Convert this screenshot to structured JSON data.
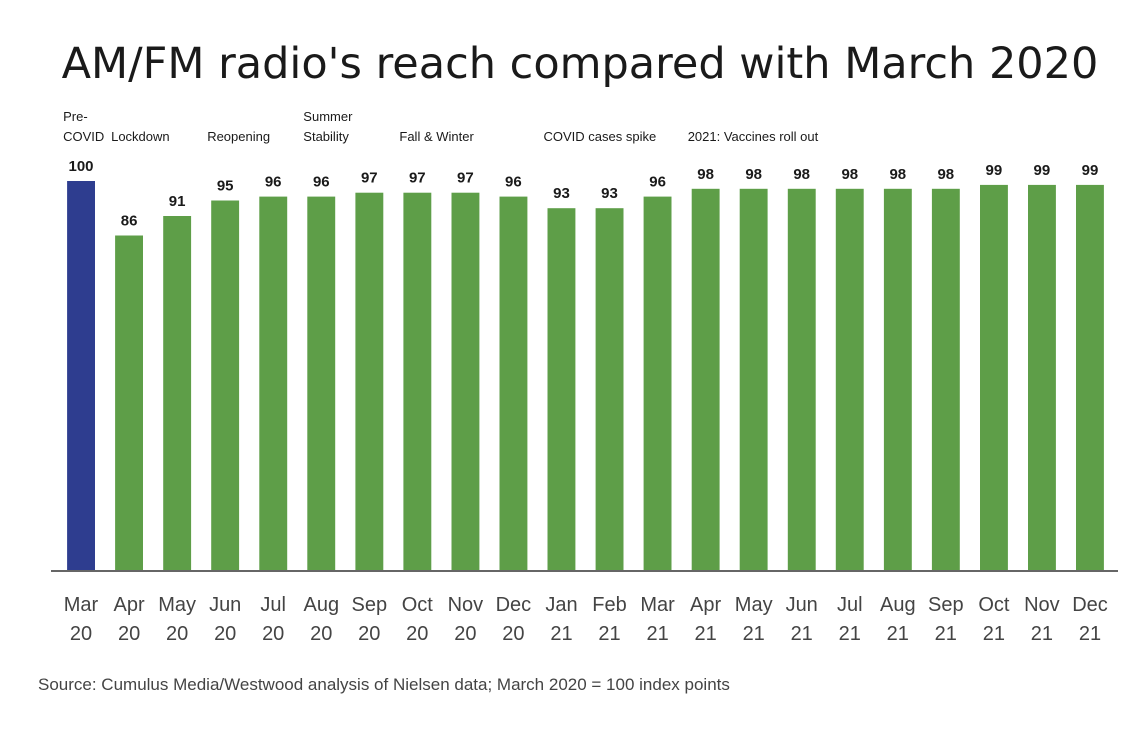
{
  "chart_data": {
    "type": "bar",
    "title": "AM/FM radio's reach compared with March 2020",
    "categories": [
      [
        "Mar",
        "20"
      ],
      [
        "Apr",
        "20"
      ],
      [
        "May",
        "20"
      ],
      [
        "Jun",
        "20"
      ],
      [
        "Jul",
        "20"
      ],
      [
        "Aug",
        "20"
      ],
      [
        "Sep",
        "20"
      ],
      [
        "Oct",
        "20"
      ],
      [
        "Nov",
        "20"
      ],
      [
        "Dec",
        "20"
      ],
      [
        "Jan",
        "21"
      ],
      [
        "Feb",
        "21"
      ],
      [
        "Mar",
        "21"
      ],
      [
        "Apr",
        "21"
      ],
      [
        "May",
        "21"
      ],
      [
        "Jun",
        "21"
      ],
      [
        "Jul",
        "21"
      ],
      [
        "Aug",
        "21"
      ],
      [
        "Sep",
        "21"
      ],
      [
        "Oct",
        "21"
      ],
      [
        "Nov",
        "21"
      ],
      [
        "Dec",
        "21"
      ]
    ],
    "values": [
      100,
      86,
      91,
      95,
      96,
      96,
      97,
      97,
      97,
      96,
      93,
      93,
      96,
      98,
      98,
      98,
      98,
      98,
      98,
      99,
      99,
      99
    ],
    "highlight_index": 0,
    "colors": {
      "highlight": "#2e3d8f",
      "bar": "#5e9e48",
      "axis": "#333333"
    },
    "ylim": [
      0,
      100
    ],
    "grid": false,
    "annotations": [
      {
        "index": 0,
        "lines": [
          "Pre-",
          "COVID"
        ]
      },
      {
        "index": 1,
        "lines": [
          "Lockdown"
        ]
      },
      {
        "index": 3,
        "lines": [
          "Reopening"
        ]
      },
      {
        "index": 5,
        "lines": [
          "Summer",
          "Stability"
        ]
      },
      {
        "index": 7,
        "lines": [
          "Fall & Winter"
        ]
      },
      {
        "index": 10,
        "lines": [
          "COVID cases spike"
        ]
      },
      {
        "index": 13,
        "lines": [
          "2021: Vaccines roll out"
        ]
      }
    ],
    "source": "Source: Cumulus Media/Westwood analysis of Nielsen data; March 2020 = 100 index points"
  }
}
